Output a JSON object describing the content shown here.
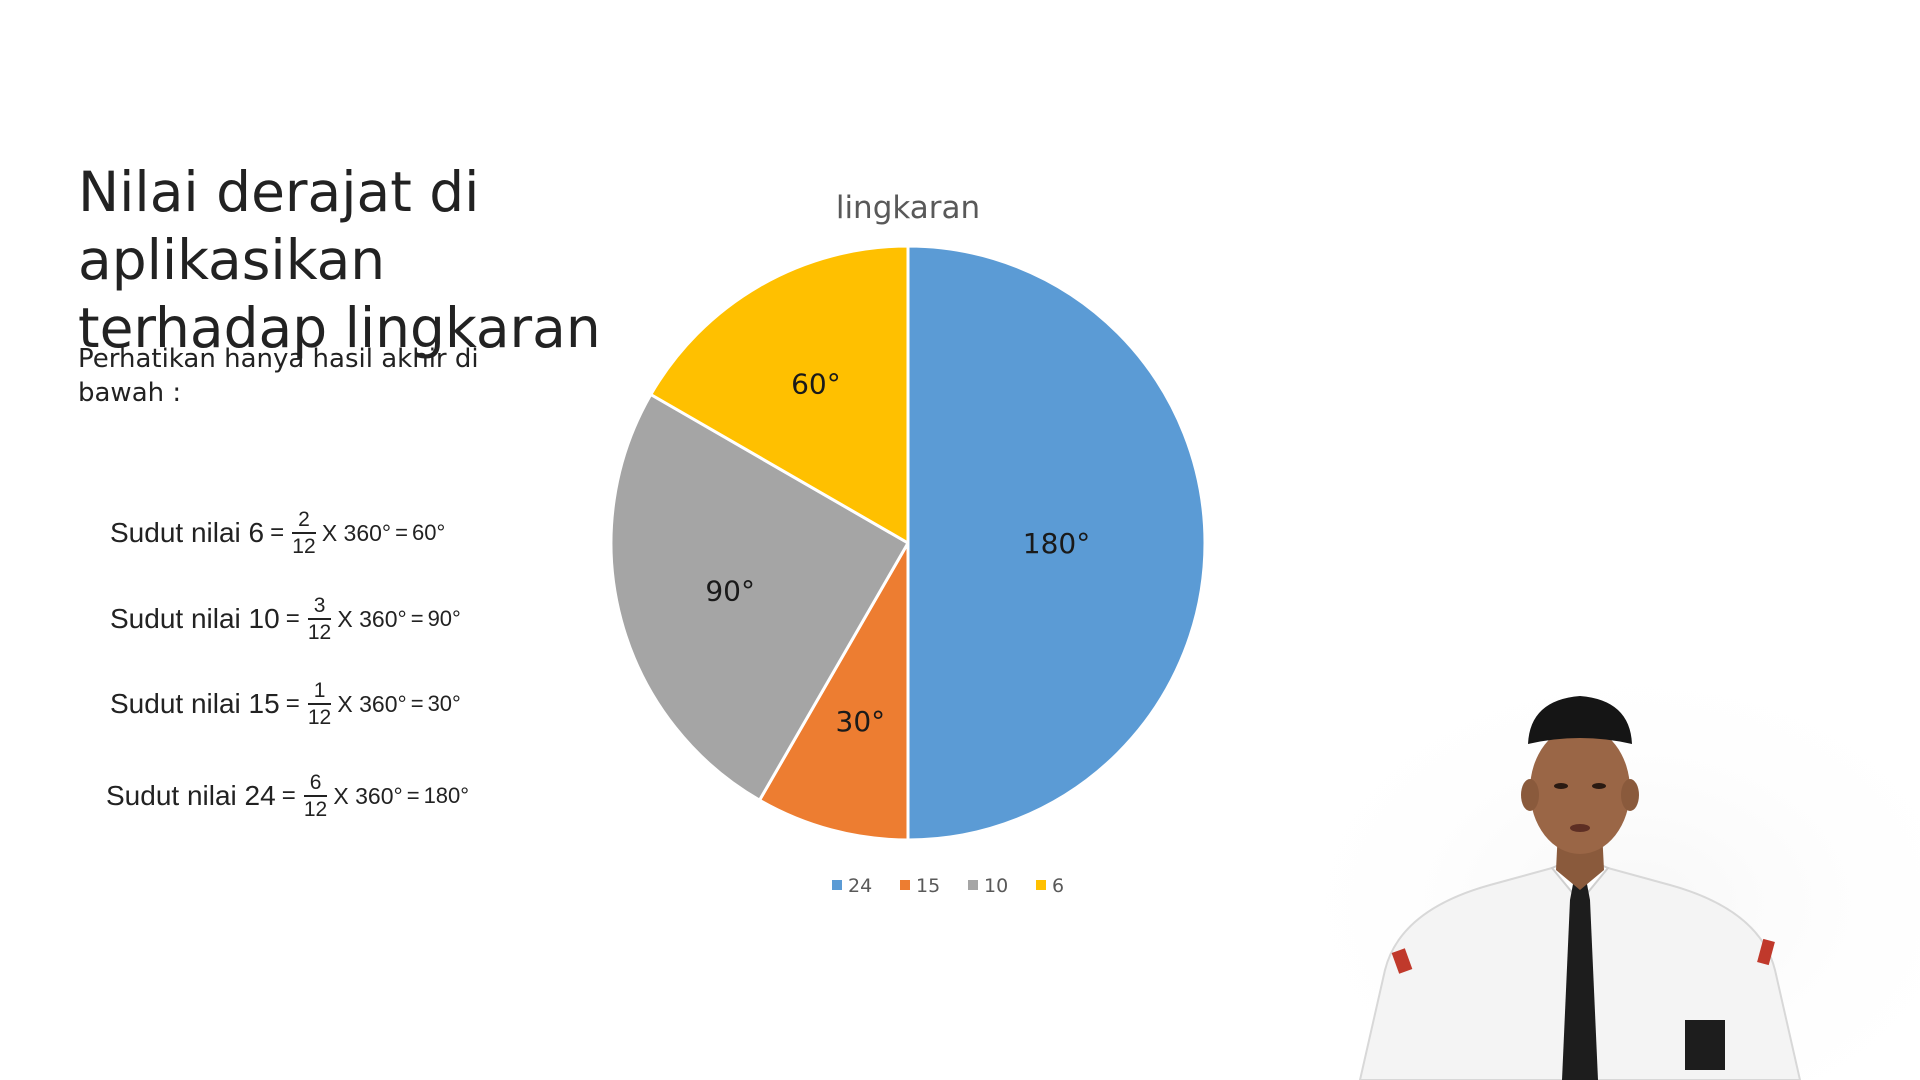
{
  "slide": {
    "title_lines": [
      "Nilai derajat di aplikasikan",
      "terhadap lingkaran"
    ],
    "intro_lines": [
      "Perhatikan hanya hasil akhir di",
      "bawah :"
    ]
  },
  "formulas": [
    {
      "label": "Sudut nilai 6",
      "eq": "=",
      "numerator": "2",
      "denominator": "12",
      "multiplier": "X 360°",
      "eq2": "=",
      "result": "60°"
    },
    {
      "label": "Sudut nilai 10",
      "eq": "=",
      "numerator": "3",
      "denominator": "12",
      "multiplier": "X 360°",
      "eq2": "=",
      "result": "90°"
    },
    {
      "label": "Sudut nilai 15",
      "eq": "=",
      "numerator": "1",
      "denominator": "12",
      "multiplier": "X 360°",
      "eq2": "=",
      "result": "30°"
    },
    {
      "label": "Sudut nilai 24",
      "eq": "=",
      "numerator": "6",
      "denominator": "12",
      "multiplier": "X 360°",
      "eq2": "=",
      "result": "180°"
    }
  ],
  "chart_data": {
    "type": "pie",
    "title": "lingkaran",
    "categories": [
      "24",
      "15",
      "10",
      "6"
    ],
    "values": [
      180,
      30,
      90,
      60
    ],
    "data_labels": [
      "180°",
      "30°",
      "90°",
      "60°"
    ],
    "colors": [
      "#5B9BD5",
      "#ED7D31",
      "#A5A5A5",
      "#FFC000"
    ],
    "start_angle_deg": 0,
    "direction": "clockwise",
    "legend_position": "bottom"
  },
  "colors": {
    "background": "#ffffff",
    "text": "#222222",
    "chart_title": "#595959"
  }
}
